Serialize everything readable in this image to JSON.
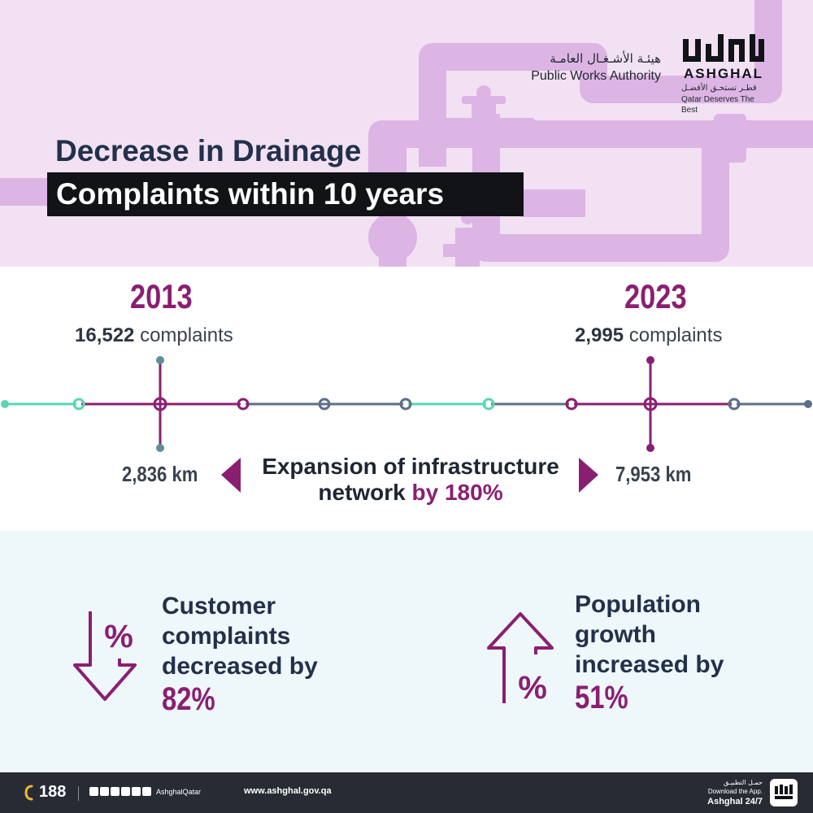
{
  "header": {
    "authority_ar": "هيئـة الأشـغـال العامـة",
    "authority_en": "Public Works Authority",
    "logo_ar": "أشغال",
    "logo_en": "ASHGHAL",
    "tagline_ar": "قطـر تستحـق الأفضـل",
    "tagline_en": "Qatar Deserves The Best",
    "title_line1": "Decrease in Drainage",
    "title_line2": "Complaints within 10 years"
  },
  "timeline": {
    "start": {
      "year": "2013",
      "complaints_value": "16,522",
      "complaints_unit": " complaints",
      "network": "2,836 km"
    },
    "end": {
      "year": "2023",
      "complaints_value": "2,995",
      "complaints_unit": " complaints",
      "network": "7,953 km"
    },
    "expansion_line1": "Expansion of infrastructure",
    "expansion_line2": "network ",
    "expansion_highlight": "by 180%"
  },
  "stats": {
    "complaints": {
      "line1": "Customer",
      "line2": "complaints",
      "line3": "decreased by",
      "value": "82%",
      "icon": "percent-down-arrow-icon",
      "symbol": "%"
    },
    "population": {
      "line1": "Population",
      "line2": "growth",
      "line3": "increased by",
      "value": "51%",
      "icon": "percent-up-arrow-icon",
      "symbol": "%"
    }
  },
  "footer": {
    "phone": "188",
    "social_handle": "AshghalQatar",
    "website": "www.ashghal.gov.qa",
    "app_ar": "حمـل التطبيـق",
    "app_line1": "Download the App.",
    "app_line2": "Ashghal 24/7"
  },
  "colors": {
    "accent": "#8a1f72",
    "navy": "#23304a",
    "header_bg": "#f1e1f3",
    "pipe": "#dcb5e4",
    "teal": "#5ad6b4",
    "slate": "#5d6f87",
    "stats_bg": "#eef7f9",
    "footer_bg": "#272c34"
  }
}
